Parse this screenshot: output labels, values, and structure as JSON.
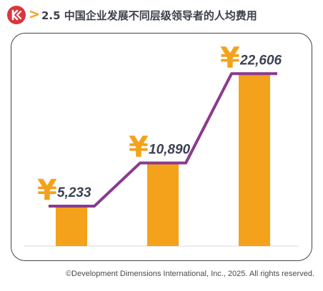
{
  "header": {
    "title": "2.5 中国企业发展不同层级领导者的人均费用",
    "logo_icon": "ddi-logo-icon",
    "arrow_icon": "chevron-right-icon"
  },
  "colors": {
    "bar": "#f4a11b",
    "line": "#8a3a8e",
    "currency": "#f4a11b",
    "value_text": "#3b4252",
    "logo": "#d9363e"
  },
  "chart_data": {
    "type": "bar",
    "currency_symbol": "¥",
    "categories": [
      "",
      "",
      ""
    ],
    "values": [
      5233,
      10890,
      22606
    ],
    "value_labels": [
      "5,233",
      "10,890",
      "22,606"
    ],
    "ylim": [
      0,
      26000
    ],
    "grid": false,
    "title": "",
    "xlabel": "",
    "ylabel": ""
  },
  "footer": {
    "copyright": "©Development Dimensions International, Inc., 2025. All rights reserved."
  }
}
